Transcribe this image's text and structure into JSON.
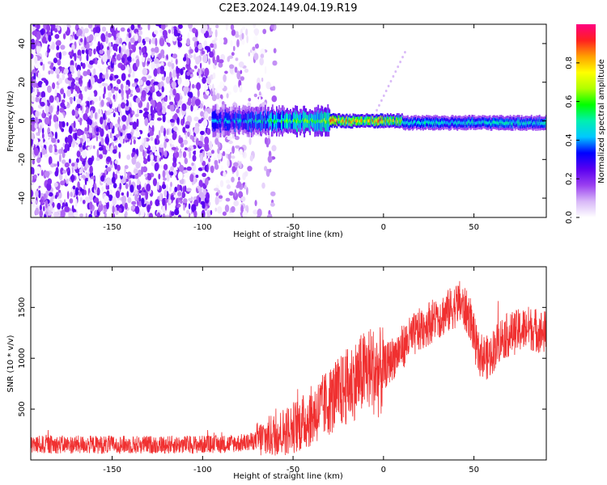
{
  "title": "C2E3.2024.149.04.19.R19",
  "chart_data": [
    {
      "type": "heatmap",
      "title": "C2E3.2024.149.04.19.R19",
      "xlabel": "Height of straight line (km)",
      "ylabel": "Frequency (Hz)",
      "xlim": [
        -195,
        90
      ],
      "ylim": [
        -50,
        50
      ],
      "xticks": [
        -150,
        -100,
        -50,
        0,
        50
      ],
      "yticks": [
        -40,
        -20,
        0,
        20,
        40
      ],
      "colorbar": {
        "label": "Normalized spectral amplitude",
        "range": [
          0.0,
          1.0
        ],
        "ticks": [
          "0.0",
          "0.2",
          "0.4",
          "0.6",
          "0.8"
        ],
        "colormap": [
          "#ffffff",
          "#d8b8f8",
          "#9a40f0",
          "#5a00f0",
          "#0000ff",
          "#00c8ff",
          "#00f0b0",
          "#00ff00",
          "#b0ff00",
          "#ffff00",
          "#ffa000",
          "#ff2020",
          "#ff0080"
        ]
      },
      "regions": [
        {
          "x_range": [
            -195,
            -95
          ],
          "amplitude": "scattered noise, 0.0-0.25"
        },
        {
          "x_range": [
            -95,
            -60
          ],
          "amplitude": "sparse noise, 0.0-0.15"
        },
        {
          "x_range": [
            -95,
            0
          ],
          "freq_center": 0,
          "amplitude": "0.2-0.6"
        },
        {
          "x_range": [
            -30,
            10
          ],
          "freq_center": 0,
          "amplitude": "0.8-1.0"
        },
        {
          "x_range": [
            10,
            90
          ],
          "freq_center": -1,
          "amplitude": "0.35-0.55"
        }
      ]
    },
    {
      "type": "line",
      "xlabel": "Height of straight line (km)",
      "ylabel": "SNR (10 * v/v)",
      "xlim": [
        -195,
        90
      ],
      "ylim": [
        0,
        1900
      ],
      "xticks": [
        -150,
        -100,
        -50,
        0,
        50
      ],
      "yticks": [
        500,
        1000,
        1500
      ],
      "color": "#f03030",
      "x": [
        -195,
        -170,
        -150,
        -130,
        -110,
        -90,
        -75,
        -65,
        -55,
        -45,
        -35,
        -25,
        -15,
        -8,
        -2,
        5,
        15,
        25,
        35,
        42,
        48,
        52,
        58,
        65,
        72,
        80,
        90
      ],
      "y": [
        150,
        150,
        150,
        150,
        150,
        155,
        170,
        220,
        280,
        360,
        500,
        650,
        800,
        900,
        850,
        1000,
        1200,
        1350,
        1450,
        1550,
        1400,
        1050,
        1000,
        1200,
        1250,
        1300,
        1250
      ]
    }
  ]
}
